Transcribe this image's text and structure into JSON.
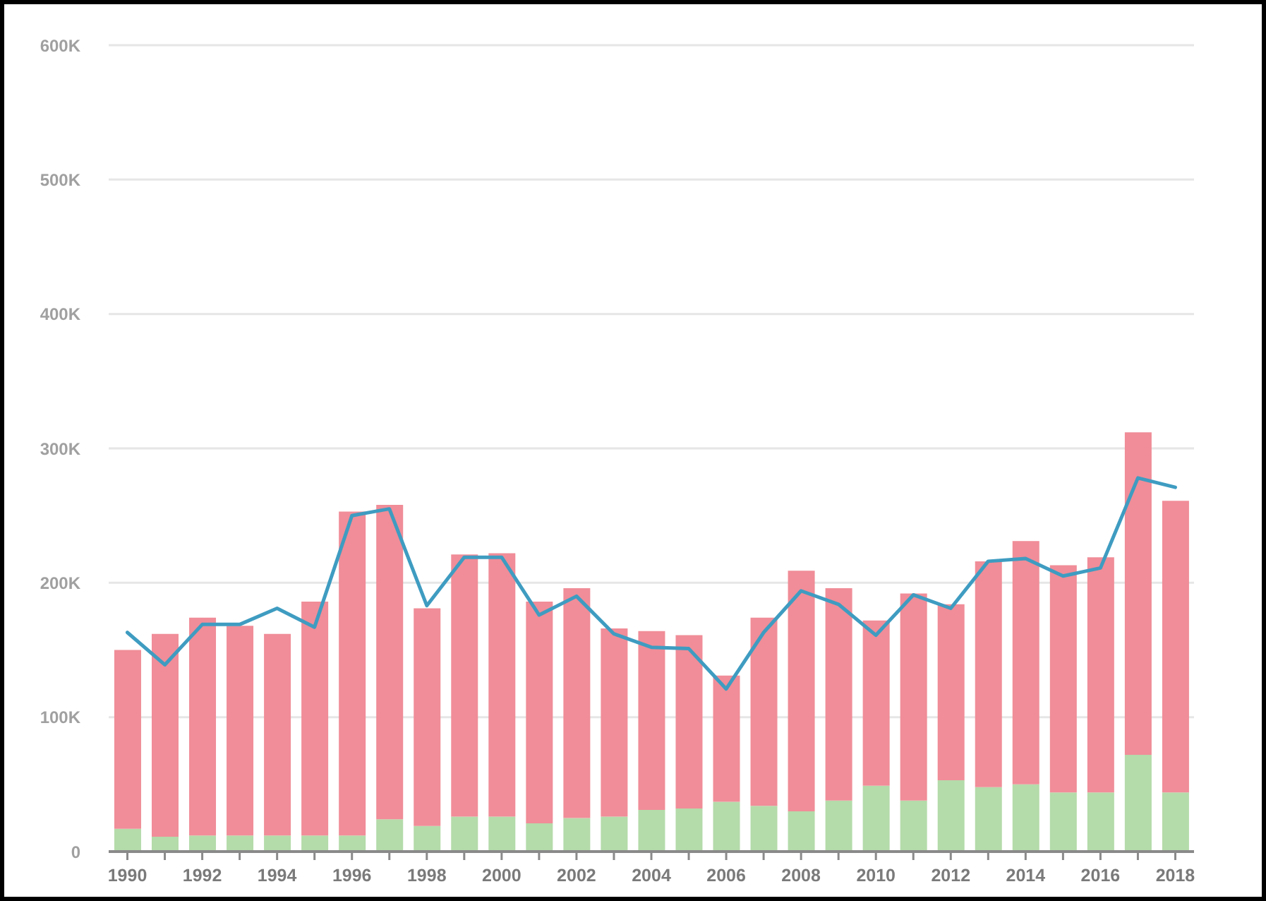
{
  "chart_data": {
    "type": "bar",
    "stacked": true,
    "grid": "y",
    "marker": "none",
    "line_style": "solid",
    "categories": [
      "1990",
      null,
      "1992",
      null,
      "1994",
      null,
      "1996",
      null,
      "1998",
      null,
      "2000",
      null,
      "2002",
      null,
      "2004",
      null,
      "2006",
      null,
      "2008",
      null,
      "2010",
      null,
      "2012",
      null,
      "2014",
      null,
      "2016",
      null,
      "2018"
    ],
    "series": [
      {
        "color": "#b4dbaa",
        "values": [
          17000,
          11000,
          12000,
          12000,
          12000,
          12000,
          12000,
          24000,
          19000,
          26000,
          26000,
          21000,
          25000,
          26000,
          31000,
          32000,
          37000,
          34000,
          30000,
          38000,
          49000,
          38000,
          53000,
          48000,
          50000,
          44000,
          44000,
          72000,
          44000
        ]
      },
      {
        "color": "#f08d98",
        "values": [
          133000,
          151000,
          162000,
          156000,
          150000,
          174000,
          241000,
          234000,
          162000,
          195000,
          196000,
          165000,
          171000,
          140000,
          133000,
          129000,
          94000,
          140000,
          179000,
          158000,
          123000,
          154000,
          131000,
          168000,
          181000,
          169000,
          175000,
          240000,
          217000
        ]
      },
      {
        "type": "line",
        "color": "#3f9cc1",
        "values": [
          163000,
          139000,
          169000,
          169000,
          181000,
          167000,
          250000,
          255000,
          183000,
          219000,
          219000,
          176000,
          190000,
          162000,
          152000,
          151000,
          121000,
          163000,
          194000,
          184000,
          161000,
          191000,
          181000,
          216000,
          218000,
          205000,
          211000,
          278000,
          271000
        ]
      }
    ],
    "ylim": [
      0,
      600000
    ],
    "yticks": [
      0,
      {
        "value": 100000,
        "label": "100K"
      },
      {
        "value": 200000,
        "label": "200K"
      },
      {
        "value": 300000,
        "label": "300K"
      },
      {
        "value": 400000,
        "label": "400K"
      },
      {
        "value": 500000,
        "label": "500K"
      },
      {
        "value": 600000,
        "label": "600K"
      }
    ]
  }
}
